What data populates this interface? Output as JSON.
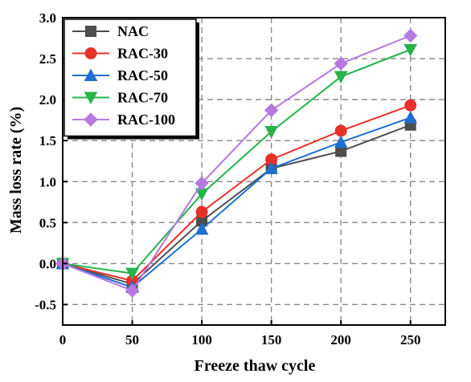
{
  "chart_data": {
    "type": "line",
    "title": "",
    "xlabel": "Freeze thaw cycle",
    "ylabel": "Mass loss rate (%)",
    "x": [
      0,
      50,
      100,
      150,
      200,
      250
    ],
    "xlim": [
      0,
      275
    ],
    "ylim": [
      -0.75,
      3.0
    ],
    "xticks": [
      0,
      50,
      100,
      150,
      200,
      250
    ],
    "yticks": [
      -0.5,
      0.0,
      0.5,
      1.0,
      1.5,
      2.0,
      2.5,
      3.0
    ],
    "xtick_labels": [
      "0",
      "50",
      "100",
      "150",
      "200",
      "250"
    ],
    "ytick_labels": [
      "-0.5",
      "0.0",
      "0.5",
      "1.0",
      "1.5",
      "2.0",
      "2.5",
      "3.0"
    ],
    "grid": true,
    "legend_position": "top-left",
    "series": [
      {
        "name": "NAC",
        "color": "#4d4d4d",
        "marker": "square",
        "values": [
          0.0,
          -0.25,
          0.52,
          1.16,
          1.37,
          1.69
        ]
      },
      {
        "name": "RAC-30",
        "color": "#e8302a",
        "marker": "circle",
        "values": [
          0.0,
          -0.21,
          0.63,
          1.27,
          1.62,
          1.93
        ]
      },
      {
        "name": "RAC-50",
        "color": "#1f6fd0",
        "marker": "triangle-up",
        "values": [
          0.0,
          -0.29,
          0.42,
          1.16,
          1.48,
          1.78
        ]
      },
      {
        "name": "RAC-70",
        "color": "#27b34b",
        "marker": "triangle-down",
        "values": [
          0.0,
          -0.12,
          0.85,
          1.61,
          2.28,
          2.61
        ]
      },
      {
        "name": "RAC-100",
        "color": "#b579e0",
        "marker": "diamond",
        "values": [
          0.0,
          -0.33,
          0.98,
          1.87,
          2.44,
          2.78
        ]
      }
    ]
  }
}
